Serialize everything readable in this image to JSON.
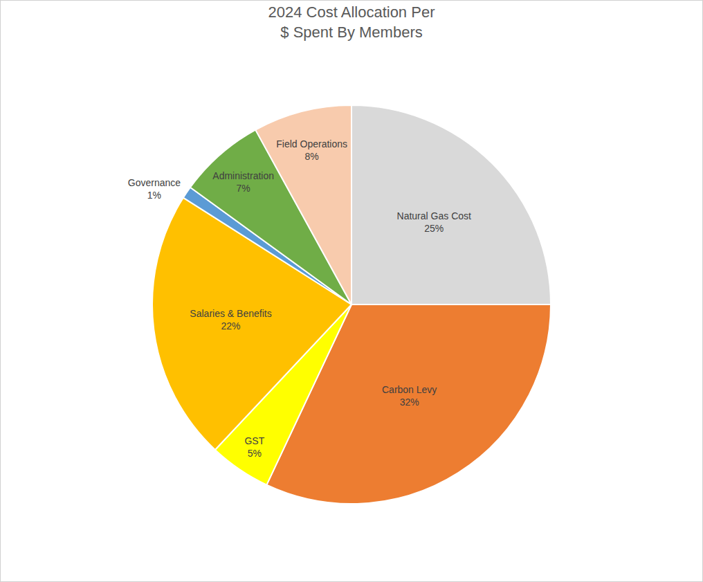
{
  "chart_data": {
    "type": "pie",
    "title": "2024 Cost Allocation Per\n$ Spent By Members",
    "categories": [
      "Natural Gas Cost",
      "Carbon Levy",
      "GST",
      "Salaries & Benefits",
      "Governance",
      "Administration",
      "Field Operations"
    ],
    "values": [
      25,
      32,
      5,
      22,
      1,
      7,
      8
    ],
    "value_labels": [
      "25%",
      "32%",
      "5%",
      "22%",
      "1%",
      "7%",
      "8%"
    ],
    "colors": [
      "#d9d9d9",
      "#ed7d31",
      "#ffff00",
      "#ffc000",
      "#5b9bd5",
      "#70ad47",
      "#f8cbad"
    ],
    "data_labels": true
  }
}
